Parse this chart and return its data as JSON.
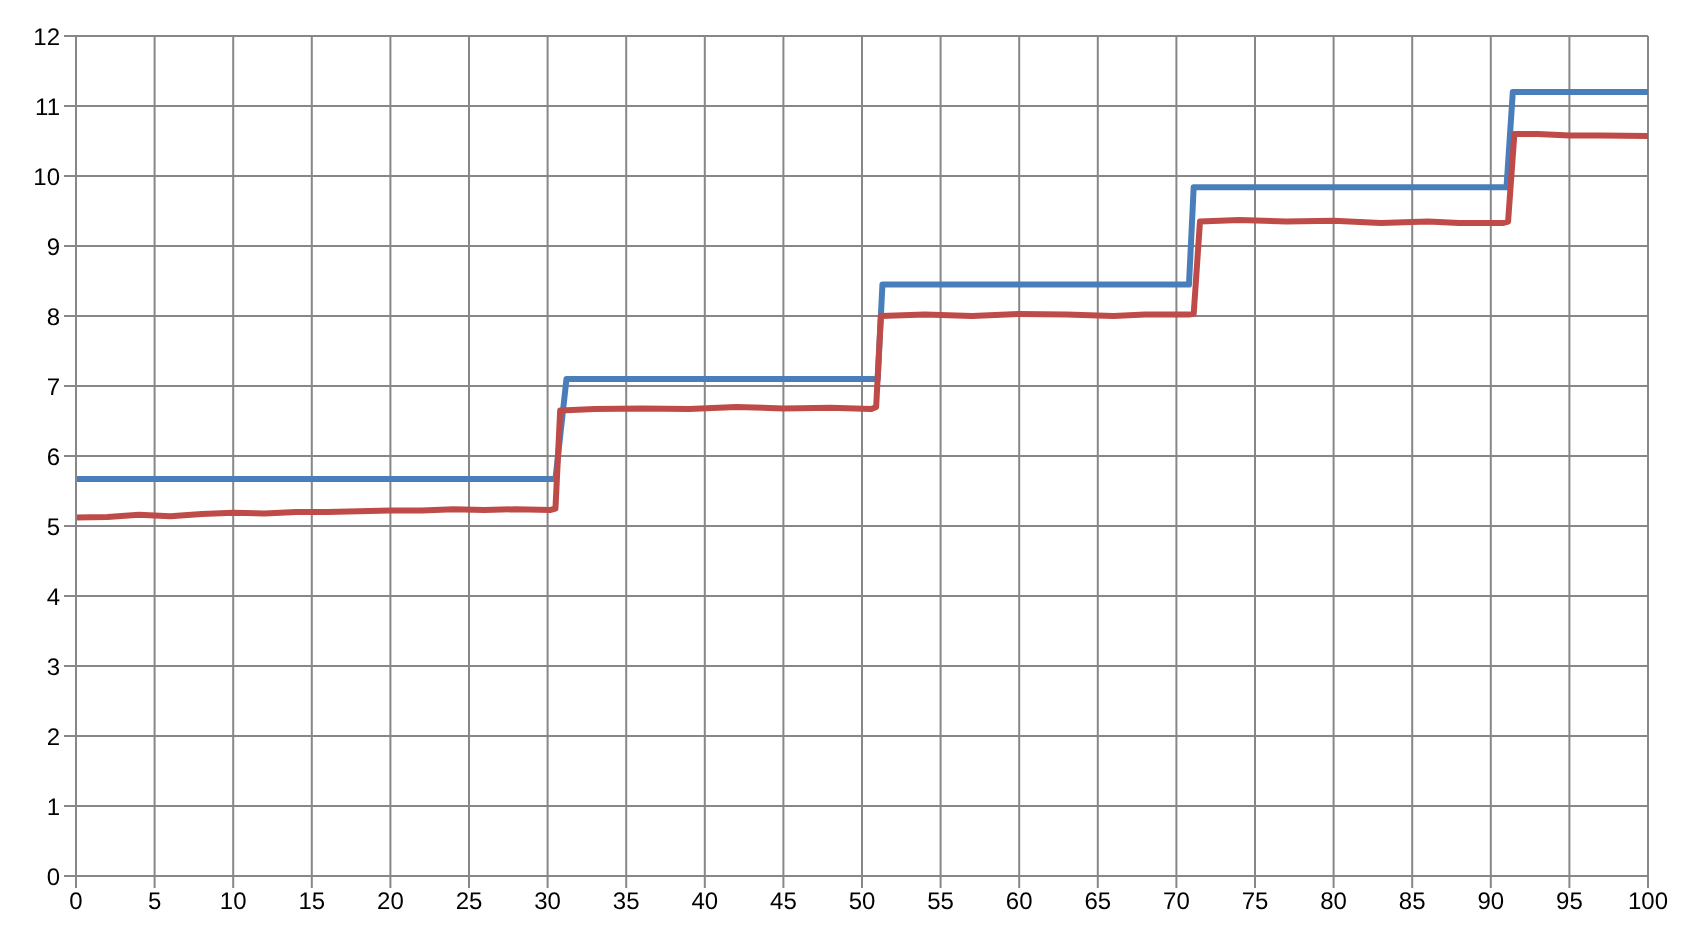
{
  "chart_data": {
    "type": "line",
    "xlim": [
      0,
      100
    ],
    "ylim": [
      0,
      12
    ],
    "xticks": [
      0,
      5,
      10,
      15,
      20,
      25,
      30,
      35,
      40,
      45,
      50,
      55,
      60,
      65,
      70,
      75,
      80,
      85,
      90,
      95,
      100
    ],
    "yticks": [
      0,
      1,
      2,
      3,
      4,
      5,
      6,
      7,
      8,
      9,
      10,
      11,
      12
    ],
    "grid": true,
    "legend": false,
    "marker": "none",
    "line_style": "solid",
    "series": [
      {
        "color": "#4a7ebb",
        "x": [
          0,
          30.5,
          31.2,
          51,
          51.3,
          70.8,
          71.1,
          91,
          91.4,
          100
        ],
        "values": [
          5.67,
          5.67,
          7.1,
          7.1,
          8.45,
          8.45,
          9.84,
          9.84,
          11.2,
          11.2
        ]
      },
      {
        "color": "#be4b48",
        "x": [
          0,
          2,
          4,
          6,
          8,
          10,
          12,
          14,
          16,
          18,
          20,
          22,
          24,
          26,
          28,
          30.2,
          30.5,
          30.8,
          33,
          36,
          39,
          42,
          45,
          48,
          50.6,
          50.9,
          51.2,
          54,
          57,
          60,
          63,
          66,
          68,
          70.8,
          71.1,
          71.5,
          74,
          77,
          80,
          83,
          86,
          88,
          90.8,
          91.1,
          91.5,
          93,
          95,
          97,
          100
        ],
        "values": [
          5.12,
          5.13,
          5.16,
          5.14,
          5.17,
          5.19,
          5.18,
          5.2,
          5.2,
          5.21,
          5.22,
          5.22,
          5.24,
          5.23,
          5.24,
          5.23,
          5.25,
          6.65,
          6.67,
          6.68,
          6.67,
          6.7,
          6.68,
          6.69,
          6.67,
          6.7,
          8.0,
          8.02,
          8.0,
          8.03,
          8.02,
          8.0,
          8.02,
          8.02,
          8.03,
          9.35,
          9.37,
          9.35,
          9.36,
          9.33,
          9.35,
          9.33,
          9.33,
          9.35,
          10.6,
          10.6,
          10.58,
          10.58,
          10.57
        ]
      }
    ]
  }
}
